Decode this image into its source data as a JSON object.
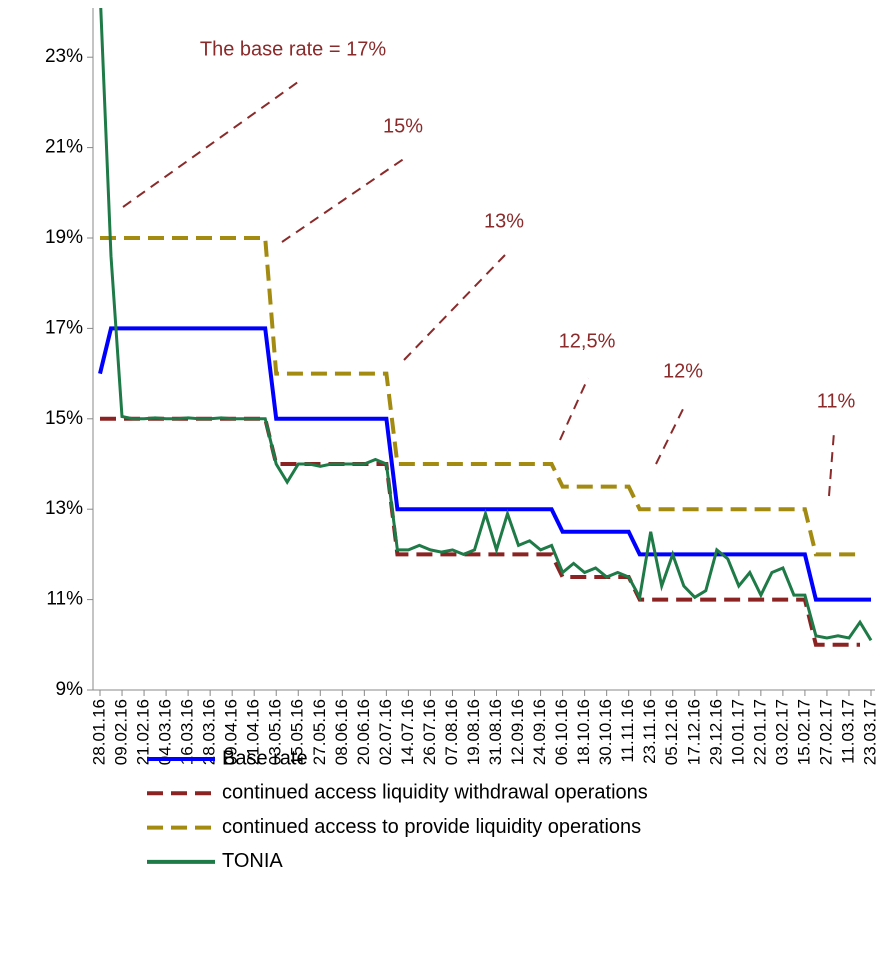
{
  "chart_data": {
    "type": "line",
    "categories": [
      "28.01.16",
      null,
      "09.02.16",
      null,
      "21.02.16",
      null,
      "04.03.16",
      null,
      "16.03.16",
      null,
      "28.03.16",
      null,
      "09.04.16",
      null,
      "21.04.16",
      null,
      "03.05.16",
      null,
      "15.05.16",
      null,
      "27.05.16",
      null,
      "08.06.16",
      null,
      "20.06.16",
      null,
      "02.07.16",
      null,
      "14.07.16",
      null,
      "26.07.16",
      null,
      "07.08.16",
      null,
      "19.08.16",
      null,
      "31.08.16",
      null,
      "12.09.16",
      null,
      "24.09.16",
      null,
      "06.10.16",
      null,
      "18.10.16",
      null,
      "30.10.16",
      null,
      "11.11.16",
      null,
      "23.11.16",
      null,
      "05.12.16",
      null,
      "17.12.16",
      null,
      "29.12.16",
      null,
      "10.01.17",
      null,
      "22.01.17",
      null,
      "03.02.17",
      null,
      "15.02.17",
      null,
      "27.02.17",
      null,
      "11.03.17",
      null,
      "23.03.17"
    ],
    "series": [
      {
        "name": "Base rate",
        "color": "#0000ff",
        "dash": false,
        "values": [
          16,
          17,
          17,
          17,
          17,
          17,
          17,
          17,
          17,
          17,
          17,
          17,
          17,
          17,
          17,
          17,
          15,
          15,
          15,
          15,
          15,
          15,
          15,
          15,
          15,
          15,
          15,
          13,
          13,
          13,
          13,
          13,
          13,
          13,
          13,
          13,
          13,
          13,
          13,
          13,
          13,
          13,
          12.5,
          12.5,
          12.5,
          12.5,
          12.5,
          12.5,
          12.5,
          12,
          12,
          12,
          12,
          12,
          12,
          12,
          12,
          12,
          12,
          12,
          12,
          12,
          12,
          12,
          12,
          11,
          11,
          11,
          11,
          11,
          11
        ]
      },
      {
        "name": "continued access liquidity withdrawal operations",
        "color": "#8b2323",
        "dash": true,
        "values": [
          15,
          15,
          15,
          15,
          15,
          15,
          15,
          15,
          15,
          15,
          15,
          15,
          15,
          15,
          15,
          15,
          14,
          14,
          14,
          14,
          14,
          14,
          14,
          14,
          14,
          14,
          14,
          12,
          12,
          12,
          12,
          12,
          12,
          12,
          12,
          12,
          12,
          12,
          12,
          12,
          12,
          12,
          11.5,
          11.5,
          11.5,
          11.5,
          11.5,
          11.5,
          11.5,
          11,
          11,
          11,
          11,
          11,
          11,
          11,
          11,
          11,
          11,
          11,
          11,
          11,
          11,
          11,
          11,
          10,
          10,
          10,
          10,
          10,
          null
        ]
      },
      {
        "name": "continued access to provide liquidity operations",
        "color": "#a38b12",
        "dash": true,
        "values": [
          19,
          19,
          19,
          19,
          19,
          19,
          19,
          19,
          19,
          19,
          19,
          19,
          19,
          19,
          19,
          19,
          16,
          16,
          16,
          16,
          16,
          16,
          16,
          16,
          16,
          16,
          16,
          14,
          14,
          14,
          14,
          14,
          14,
          14,
          14,
          14,
          14,
          14,
          14,
          14,
          14,
          14,
          13.5,
          13.5,
          13.5,
          13.5,
          13.5,
          13.5,
          13.5,
          13,
          13,
          13,
          13,
          13,
          13,
          13,
          13,
          13,
          13,
          13,
          13,
          13,
          13,
          13,
          13,
          12,
          12,
          12,
          12,
          12,
          null
        ]
      },
      {
        "name": "TONIA",
        "color": "#1e7a46",
        "dash": false,
        "values": [
          24.5,
          18.6,
          15.05,
          15,
          15,
          15.02,
          15,
          15,
          15.02,
          15,
          15,
          15.02,
          15,
          15,
          15,
          15,
          14,
          13.6,
          14,
          14,
          13.95,
          14,
          14,
          14,
          14,
          14.1,
          14,
          12.1,
          12.1,
          12.2,
          12.1,
          12.05,
          12.1,
          12,
          12.1,
          12.9,
          12.1,
          12.9,
          12.2,
          12.3,
          12.1,
          12.2,
          11.6,
          11.8,
          11.6,
          11.7,
          11.5,
          11.6,
          11.5,
          11.05,
          12.5,
          11.3,
          12,
          11.3,
          11.05,
          11.2,
          12.1,
          11.9,
          11.3,
          11.6,
          11.1,
          11.6,
          11.7,
          11.1,
          11.1,
          10.2,
          10.15,
          10.2,
          10.15,
          10.5,
          10.1
        ]
      }
    ],
    "ylim": [
      9,
      24
    ],
    "yticks": [
      {
        "value": 9,
        "label": "9%"
      },
      {
        "value": 11,
        "label": "11%"
      },
      {
        "value": 13,
        "label": "13%"
      },
      {
        "value": 15,
        "label": "15%"
      },
      {
        "value": 17,
        "label": "17%"
      },
      {
        "value": 19,
        "label": "19%"
      },
      {
        "value": 21,
        "label": "21%"
      },
      {
        "value": 23,
        "label": "23%"
      }
    ],
    "annotations": [
      "The base rate = 17%",
      "15%",
      "13%",
      "12,5%",
      "12%",
      "11%"
    ],
    "legend": "bottom"
  }
}
